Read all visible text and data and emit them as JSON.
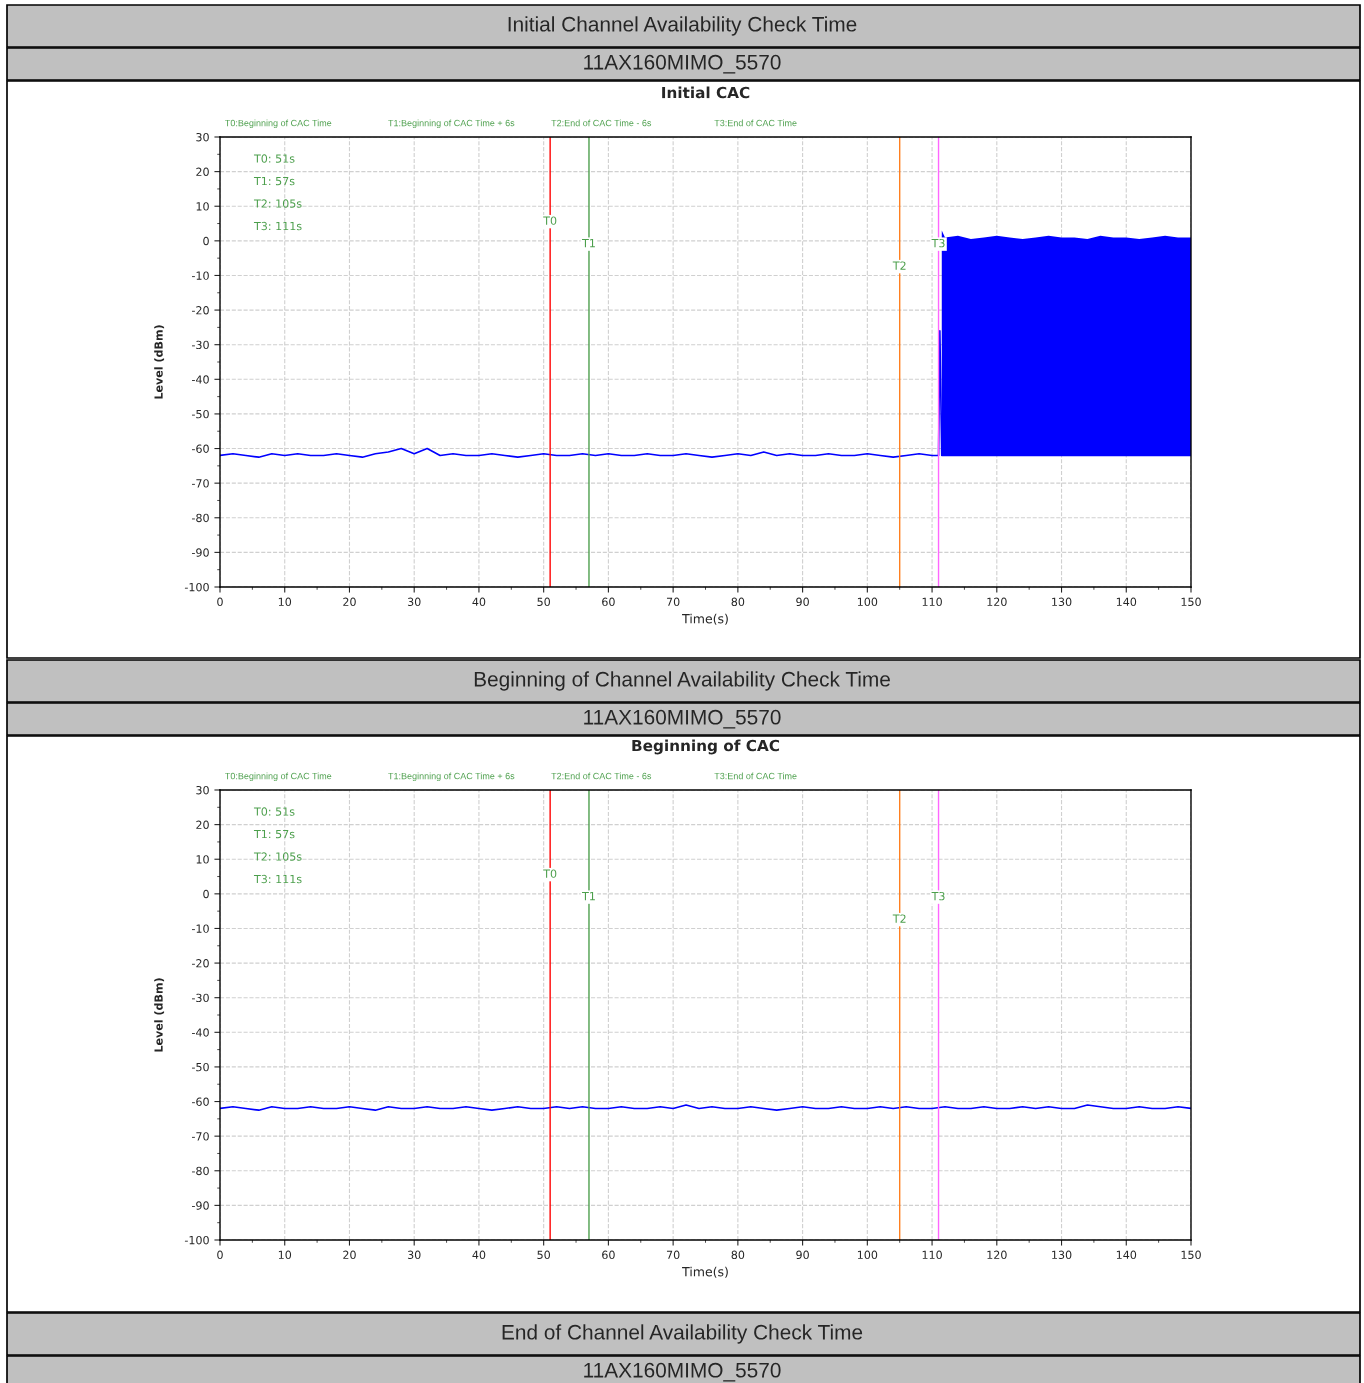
{
  "chart_data": [
    {
      "type": "line",
      "title": "Initial CAC",
      "xlabel": "Time(s)",
      "ylabel": "Level (dBm)",
      "annotations": [
        "Initial Channel Availability Check Time",
        "11AX160MIMO_5570",
        "T0:Beginning of CAC Time",
        "T1:Beginning of CAC Time + 6s",
        "T2:End of CAC Time - 6s",
        "T3:End of CAC Time",
        "T0: 51s",
        "T1: 57s",
        "T2: 105s",
        "T3: 111s"
      ],
      "xlim": [
        0,
        150
      ],
      "xticks": [
        0,
        10,
        20,
        30,
        40,
        50,
        60,
        70,
        80,
        90,
        100,
        110,
        120,
        130,
        140,
        150
      ],
      "ylim": [
        -100,
        30
      ],
      "yticks": [
        -100,
        -90,
        -80,
        -70,
        -60,
        -50,
        -40,
        -30,
        -20,
        -10,
        0,
        10,
        20,
        30
      ],
      "grid": true,
      "marker": "none",
      "line_style": "solid",
      "legend": false,
      "ref_lines": [
        {
          "axis": "x",
          "value": 51,
          "label": "T0",
          "color": "#ff0000"
        },
        {
          "axis": "x",
          "value": 57,
          "label": "T1",
          "color": "#4c9f4c"
        },
        {
          "axis": "x",
          "value": 105,
          "label": "T2",
          "color": "#ff8020"
        },
        {
          "axis": "x",
          "value": 111,
          "label": "T3",
          "color": "#ff66ff"
        }
      ],
      "series": [
        {
          "color": "#0000ff",
          "x": [
            0,
            2,
            4,
            6,
            8,
            10,
            12,
            14,
            16,
            18,
            20,
            22,
            24,
            26,
            28,
            30,
            32,
            34,
            36,
            38,
            40,
            42,
            44,
            46,
            48,
            50,
            52,
            54,
            56,
            58,
            60,
            62,
            64,
            66,
            68,
            70,
            72,
            74,
            76,
            78,
            80,
            82,
            84,
            86,
            88,
            90,
            92,
            94,
            96,
            98,
            100,
            102,
            104,
            106,
            108,
            110,
            111,
            111.2,
            111.5,
            112,
            114,
            116,
            118,
            120,
            122,
            124,
            126,
            128,
            130,
            132,
            134,
            136,
            138,
            140,
            142,
            144,
            146,
            148,
            150
          ],
          "values": [
            -62,
            -61.5,
            -62,
            -62.5,
            -61.5,
            -62,
            -61.5,
            -62,
            -62,
            -61.5,
            -62,
            -62.5,
            -61.5,
            -61,
            -60,
            -61.5,
            -60,
            -62,
            -61.5,
            -62,
            -62,
            -61.5,
            -62,
            -62.5,
            -62,
            -61.5,
            -62,
            -62,
            -61.5,
            -62,
            -61.5,
            -62,
            -62,
            -61.5,
            -62,
            -62,
            -61.5,
            -62,
            -62.5,
            -62,
            -61.5,
            -62,
            -61,
            -62,
            -61.5,
            -62,
            -62,
            -61.5,
            -62,
            -62,
            -61.5,
            -62,
            -62.5,
            -62,
            -61.5,
            -62,
            -62,
            -26,
            -62,
            -62,
            -62,
            -62,
            -62,
            -62,
            -62,
            -62,
            -62,
            -62,
            -62,
            -62,
            -62,
            -62,
            -62,
            -62,
            -62,
            -62,
            -62,
            -62,
            -62
          ],
          "lower": [
            null,
            null,
            null,
            null,
            null,
            null,
            null,
            null,
            null,
            null,
            null,
            null,
            null,
            null,
            null,
            null,
            null,
            null,
            null,
            null,
            null,
            null,
            null,
            null,
            null,
            null,
            null,
            null,
            null,
            null,
            null,
            null,
            null,
            null,
            null,
            null,
            null,
            null,
            null,
            null,
            null,
            null,
            null,
            null,
            null,
            null,
            null,
            null,
            null,
            null,
            null,
            null,
            null,
            null,
            null,
            null,
            null,
            null,
            -62,
            -62,
            -62,
            -62,
            -62,
            -62,
            -62,
            -62,
            -62,
            -62,
            -62,
            -62,
            -62,
            -62,
            -62,
            -62,
            -62,
            -62,
            -62,
            -62,
            -62
          ],
          "upper": [
            null,
            null,
            null,
            null,
            null,
            null,
            null,
            null,
            null,
            null,
            null,
            null,
            null,
            null,
            null,
            null,
            null,
            null,
            null,
            null,
            null,
            null,
            null,
            null,
            null,
            null,
            null,
            null,
            null,
            null,
            null,
            null,
            null,
            null,
            null,
            null,
            null,
            null,
            null,
            null,
            null,
            null,
            null,
            null,
            null,
            null,
            null,
            null,
            null,
            null,
            null,
            null,
            null,
            null,
            null,
            null,
            null,
            null,
            3,
            1,
            1.5,
            0.5,
            1,
            1.5,
            1,
            0.5,
            1,
            1.5,
            1,
            1,
            0.5,
            1.5,
            1,
            1,
            0.5,
            1,
            1.5,
            1,
            1
          ]
        }
      ]
    },
    {
      "type": "line",
      "title": "Beginning of CAC",
      "xlabel": "Time(s)",
      "ylabel": "Level (dBm)",
      "annotations": [
        "Beginning of Channel Availability Check Time",
        "11AX160MIMO_5570",
        "T0:Beginning of CAC Time",
        "T1:Beginning of CAC Time + 6s",
        "T2:End of CAC Time - 6s",
        "T3:End of CAC Time",
        "T0: 51s",
        "T1: 57s",
        "T2: 105s",
        "T3: 111s",
        "End of Channel Availability Check Time",
        "11AX160MIMO_5570"
      ],
      "xlim": [
        0,
        150
      ],
      "xticks": [
        0,
        10,
        20,
        30,
        40,
        50,
        60,
        70,
        80,
        90,
        100,
        110,
        120,
        130,
        140,
        150
      ],
      "ylim": [
        -100,
        30
      ],
      "yticks": [
        -100,
        -90,
        -80,
        -70,
        -60,
        -50,
        -40,
        -30,
        -20,
        -10,
        0,
        10,
        20,
        30
      ],
      "grid": true,
      "marker": "none",
      "line_style": "solid",
      "legend": false,
      "ref_lines": [
        {
          "axis": "x",
          "value": 51,
          "label": "T0",
          "color": "#ff0000"
        },
        {
          "axis": "x",
          "value": 57,
          "label": "T1",
          "color": "#4c9f4c"
        },
        {
          "axis": "x",
          "value": 105,
          "label": "T2",
          "color": "#ff8020"
        },
        {
          "axis": "x",
          "value": 111,
          "label": "T3",
          "color": "#ff66ff"
        }
      ],
      "series": [
        {
          "color": "#0000ff",
          "x": [
            0,
            2,
            4,
            6,
            8,
            10,
            12,
            14,
            16,
            18,
            20,
            22,
            24,
            26,
            28,
            30,
            32,
            34,
            36,
            38,
            40,
            42,
            44,
            46,
            48,
            50,
            52,
            54,
            56,
            58,
            60,
            62,
            64,
            66,
            68,
            70,
            72,
            74,
            76,
            78,
            80,
            82,
            84,
            86,
            88,
            90,
            92,
            94,
            96,
            98,
            100,
            102,
            104,
            106,
            108,
            110,
            112,
            114,
            116,
            118,
            120,
            122,
            124,
            126,
            128,
            130,
            132,
            134,
            136,
            138,
            140,
            142,
            144,
            146,
            148,
            150
          ],
          "values": [
            -62,
            -61.5,
            -62,
            -62.5,
            -61.5,
            -62,
            -62,
            -61.5,
            -62,
            -62,
            -61.5,
            -62,
            -62.5,
            -61.5,
            -62,
            -62,
            -61.5,
            -62,
            -62,
            -61.5,
            -62,
            -62.5,
            -62,
            -61.5,
            -62,
            -62,
            -61.5,
            -62,
            -61.5,
            -62,
            -62,
            -61.5,
            -62,
            -62,
            -61.5,
            -62,
            -61,
            -62,
            -61.5,
            -62,
            -62,
            -61.5,
            -62,
            -62.5,
            -62,
            -61.5,
            -62,
            -62,
            -61.5,
            -62,
            -62,
            -61.5,
            -62,
            -61.5,
            -62,
            -62,
            -61.5,
            -62,
            -62,
            -61.5,
            -62,
            -62,
            -61.5,
            -62,
            -61.5,
            -62,
            -62,
            -61,
            -61.5,
            -62,
            -62,
            -61.5,
            -62,
            -62,
            -61.5,
            -62
          ]
        }
      ]
    }
  ]
}
